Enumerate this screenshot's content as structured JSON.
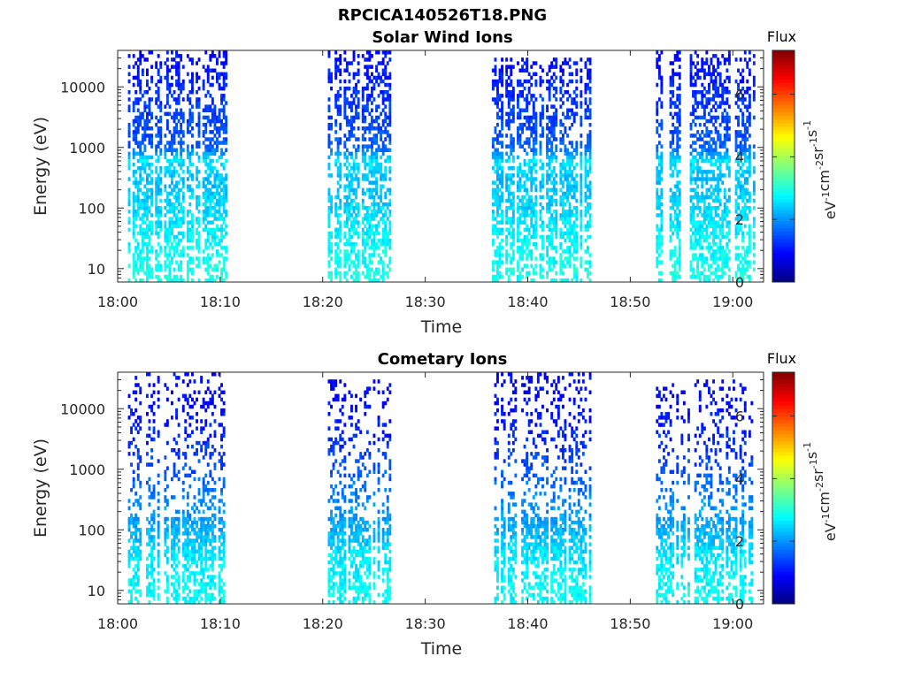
{
  "figure": {
    "title": "RPCICA140526T18.PNG"
  },
  "chart_data": [
    {
      "type": "heatmap",
      "title": "Solar Wind Ions",
      "xlabel": "Time",
      "ylabel": "Energy (eV)",
      "x_unit": "time of day (HH:MM)",
      "xlim": [
        "18:00",
        "19:03"
      ],
      "x_ticks": [
        "18:00",
        "18:10",
        "18:20",
        "18:30",
        "18:40",
        "18:50",
        "19:00"
      ],
      "y_scale": "log",
      "ylim": [
        6,
        40000
      ],
      "y_ticks": [
        10,
        100,
        1000,
        10000
      ],
      "y_tick_labels": [
        "10",
        "100",
        "1000",
        "10000"
      ],
      "colorbar": {
        "title": "Flux",
        "label": "eV-1cm-2sr-1s-1",
        "range": [
          0,
          7.4
        ],
        "ticks": [
          0,
          2,
          4,
          6
        ],
        "colormap": "jet"
      },
      "bursts": [
        {
          "start": "18:01",
          "end": "18:10.5",
          "typical_flux": 1.8,
          "max_energy": 40000
        },
        {
          "start": "18:20.5",
          "end": "18:26.5",
          "typical_flux": 1.8,
          "max_energy": 40000
        },
        {
          "start": "18:36.5",
          "end": "18:46",
          "typical_flux": 1.8,
          "max_energy": 30000
        },
        {
          "start": "18:52.5",
          "end": "19:02",
          "typical_flux": 1.8,
          "max_energy": 40000
        }
      ],
      "energy_flux_profile": [
        {
          "energy": 10,
          "flux": 2.9
        },
        {
          "energy": 40,
          "flux": 2.7
        },
        {
          "energy": 100,
          "flux": 2.5
        },
        {
          "energy": 300,
          "flux": 2.3
        },
        {
          "energy": 600,
          "flux": 2.6
        },
        {
          "energy": 1000,
          "flux": 1.6
        },
        {
          "energy": 3000,
          "flux": 1.4
        },
        {
          "energy": 10000,
          "flux": 1.2
        },
        {
          "energy": 30000,
          "flux": 1.0
        }
      ]
    },
    {
      "type": "heatmap",
      "title": "Cometary Ions",
      "xlabel": "Time",
      "ylabel": "Energy (eV)",
      "x_unit": "time of day (HH:MM)",
      "xlim": [
        "18:00",
        "19:03"
      ],
      "x_ticks": [
        "18:00",
        "18:10",
        "18:20",
        "18:30",
        "18:40",
        "18:50",
        "19:00"
      ],
      "y_scale": "log",
      "ylim": [
        6,
        40000
      ],
      "y_ticks": [
        10,
        100,
        1000,
        10000
      ],
      "y_tick_labels": [
        "10",
        "100",
        "1000",
        "10000"
      ],
      "colorbar": {
        "title": "Flux",
        "label": "eV-1cm-2sr-1s-1",
        "range": [
          0,
          7.4
        ],
        "ticks": [
          0,
          2,
          4,
          6
        ],
        "colormap": "jet"
      },
      "bursts": [
        {
          "start": "18:01",
          "end": "18:10.5",
          "typical_flux": 1.6,
          "max_energy": 40000
        },
        {
          "start": "18:20.5",
          "end": "18:26.5",
          "typical_flux": 1.6,
          "max_energy": 30000
        },
        {
          "start": "18:36.5",
          "end": "18:46",
          "typical_flux": 1.6,
          "max_energy": 40000
        },
        {
          "start": "18:52.5",
          "end": "19:02",
          "typical_flux": 1.6,
          "max_energy": 30000
        }
      ],
      "energy_flux_profile": [
        {
          "energy": 10,
          "flux": 2.8
        },
        {
          "energy": 40,
          "flux": 2.6
        },
        {
          "energy": 100,
          "flux": 2.2
        },
        {
          "energy": 300,
          "flux": 1.9
        },
        {
          "energy": 1000,
          "flux": 1.5
        },
        {
          "energy": 3000,
          "flux": 1.2
        },
        {
          "energy": 10000,
          "flux": 1.0
        },
        {
          "energy": 30000,
          "flux": 0.9
        }
      ]
    }
  ]
}
